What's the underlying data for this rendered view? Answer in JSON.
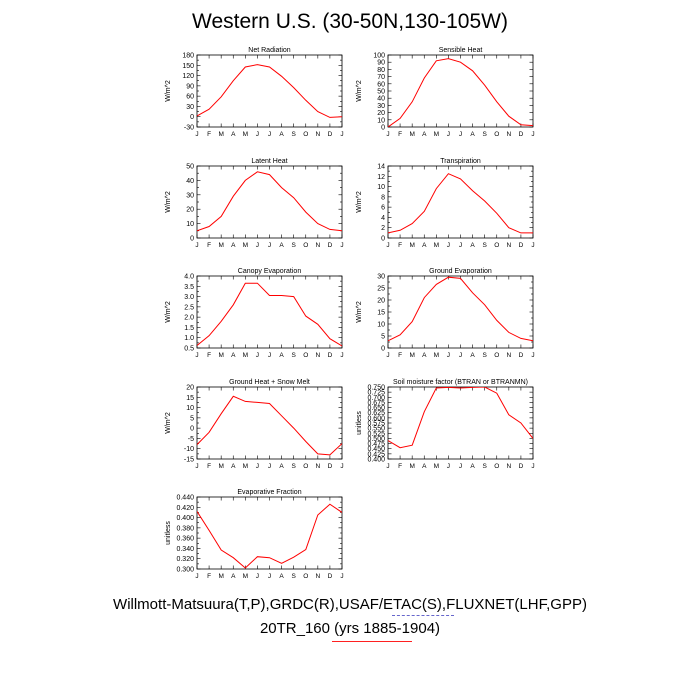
{
  "page_title": "Western U.S. (30-50N,130-105W)",
  "footer": {
    "line1": "Willmott-Matsuura(T,P),GRDC(R),USAF/ETAC(S),FLUXNET(LHF,GPP)",
    "line2": "20TR_160 (yrs 1885-1904)"
  },
  "colors": {
    "series": "#ff0000",
    "axis": "#000000",
    "legend_dashed": "#6666cc"
  },
  "chart_data": [
    {
      "type": "line",
      "title": "Net Radiation",
      "ylabel": "W/m^2",
      "ylim": [
        -30,
        180
      ],
      "yticks": [
        -30,
        -15,
        0,
        15,
        30,
        45,
        60,
        75,
        90,
        105,
        120,
        135,
        150,
        165,
        180
      ],
      "ylabels": [
        "-30",
        "",
        "0",
        "",
        "30",
        "",
        "60",
        "",
        "90",
        "",
        "120",
        "",
        "150",
        "",
        "180"
      ],
      "categories": [
        "J",
        "F",
        "M",
        "A",
        "M",
        "J",
        "J",
        "A",
        "S",
        "O",
        "N",
        "D",
        "J"
      ],
      "values": [
        2,
        22,
        58,
        105,
        145,
        152,
        145,
        118,
        85,
        48,
        15,
        -2,
        0
      ]
    },
    {
      "type": "line",
      "title": "Sensible Heat",
      "ylabel": "W/m^2",
      "ylim": [
        0,
        100
      ],
      "yticks": [
        0,
        10,
        20,
        30,
        40,
        50,
        60,
        70,
        80,
        90,
        100
      ],
      "ylabels": [
        "0",
        "10",
        "20",
        "30",
        "40",
        "50",
        "60",
        "70",
        "80",
        "90",
        "100"
      ],
      "categories": [
        "J",
        "F",
        "M",
        "A",
        "M",
        "J",
        "J",
        "A",
        "S",
        "O",
        "N",
        "D",
        "J"
      ],
      "values": [
        0,
        12,
        35,
        68,
        92,
        95,
        90,
        78,
        58,
        35,
        15,
        3,
        2
      ]
    },
    {
      "type": "line",
      "title": "Latent Heat",
      "ylabel": "W/m^2",
      "ylim": [
        0,
        50
      ],
      "yticks": [
        0,
        5,
        10,
        15,
        20,
        25,
        30,
        35,
        40,
        45,
        50
      ],
      "ylabels": [
        "0",
        "",
        "10",
        "",
        "20",
        "",
        "30",
        "",
        "40",
        "",
        "50"
      ],
      "categories": [
        "J",
        "F",
        "M",
        "A",
        "M",
        "J",
        "J",
        "A",
        "S",
        "O",
        "N",
        "D",
        "J"
      ],
      "values": [
        5,
        8,
        15,
        29,
        40,
        46,
        44,
        35,
        28,
        18,
        10,
        6,
        5
      ]
    },
    {
      "type": "line",
      "title": "Transpiration",
      "ylabel": "W/m^2",
      "ylim": [
        0,
        14
      ],
      "yticks": [
        0,
        1,
        2,
        3,
        4,
        5,
        6,
        7,
        8,
        9,
        10,
        11,
        12,
        13,
        14
      ],
      "ylabels": [
        "0",
        "",
        "2",
        "",
        "4",
        "",
        "6",
        "",
        "8",
        "",
        "10",
        "",
        "12",
        "",
        "14"
      ],
      "categories": [
        "J",
        "F",
        "M",
        "A",
        "M",
        "J",
        "J",
        "A",
        "S",
        "O",
        "N",
        "D",
        "J"
      ],
      "values": [
        1,
        1.5,
        2.8,
        5.2,
        9.6,
        12.5,
        11.5,
        9.2,
        7.2,
        4.8,
        2,
        1,
        1
      ]
    },
    {
      "type": "line",
      "title": "Canopy Evaporation",
      "ylabel": "W/m^2",
      "ylim": [
        0.5,
        4.0
      ],
      "yticks": [
        0.5,
        0.75,
        1.0,
        1.25,
        1.5,
        1.75,
        2.0,
        2.25,
        2.5,
        2.75,
        3.0,
        3.25,
        3.5,
        3.75,
        4.0
      ],
      "ylabels": [
        "0.5",
        "",
        "1.0",
        "",
        "1.5",
        "",
        "2.0",
        "",
        "2.5",
        "",
        "3.0",
        "",
        "3.5",
        "",
        "4.0"
      ],
      "categories": [
        "J",
        "F",
        "M",
        "A",
        "M",
        "J",
        "J",
        "A",
        "S",
        "O",
        "N",
        "D",
        "J"
      ],
      "values": [
        0.62,
        1.1,
        1.8,
        2.6,
        3.65,
        3.65,
        3.05,
        3.05,
        3.0,
        2.05,
        1.65,
        0.95,
        0.6
      ]
    },
    {
      "type": "line",
      "title": "Ground Evaporation",
      "ylabel": "W/m^2",
      "ylim": [
        0,
        30
      ],
      "yticks": [
        0,
        2.5,
        5,
        7.5,
        10,
        12.5,
        15,
        17.5,
        20,
        22.5,
        25,
        27.5,
        30
      ],
      "ylabels": [
        "0",
        "",
        "5",
        "",
        "10",
        "",
        "15",
        "",
        "20",
        "",
        "25",
        "",
        "30"
      ],
      "categories": [
        "J",
        "F",
        "M",
        "A",
        "M",
        "J",
        "J",
        "A",
        "S",
        "O",
        "N",
        "D",
        "J"
      ],
      "values": [
        3,
        5.5,
        11,
        21,
        26.5,
        29.5,
        29,
        23,
        18,
        11.5,
        6.5,
        4,
        3
      ]
    },
    {
      "type": "line",
      "title": "Ground Heat + Snow Melt",
      "ylabel": "W/m^2",
      "ylim": [
        -15,
        20
      ],
      "yticks": [
        -15,
        -12.5,
        -10,
        -7.5,
        -5,
        -2.5,
        0,
        2.5,
        5,
        7.5,
        10,
        12.5,
        15,
        17.5,
        20
      ],
      "ylabels": [
        "-15",
        "",
        "-10",
        "",
        "-5",
        "",
        "0",
        "",
        "5",
        "",
        "10",
        "",
        "15",
        "",
        "20"
      ],
      "categories": [
        "J",
        "F",
        "M",
        "A",
        "M",
        "J",
        "J",
        "A",
        "S",
        "O",
        "N",
        "D",
        "J"
      ],
      "values": [
        -8,
        -2,
        7,
        15.5,
        13,
        12.5,
        12,
        6,
        0,
        -6.5,
        -12.5,
        -13,
        -7.5
      ]
    },
    {
      "type": "line",
      "title": "Soil moisture factor (BTRAN or BTRANMN)",
      "ylabel": "unitless",
      "ylim": [
        0.4,
        0.75
      ],
      "yticks": [
        0.4,
        0.425,
        0.45,
        0.475,
        0.5,
        0.525,
        0.55,
        0.575,
        0.6,
        0.625,
        0.65,
        0.675,
        0.7,
        0.725,
        0.75
      ],
      "ylabels": [
        "0.400",
        "0.425",
        "0.450",
        "0.475",
        "0.500",
        "0.525",
        "0.550",
        "0.575",
        "0.600",
        "0.625",
        "0.650",
        "0.675",
        "0.700",
        "0.725",
        "0.750"
      ],
      "categories": [
        "J",
        "F",
        "M",
        "A",
        "M",
        "J",
        "J",
        "A",
        "S",
        "O",
        "N",
        "D",
        "J"
      ],
      "values": [
        0.49,
        0.455,
        0.467,
        0.63,
        0.745,
        0.748,
        0.745,
        0.748,
        0.75,
        0.72,
        0.615,
        0.575,
        0.5
      ]
    },
    {
      "type": "line",
      "title": "Evaporative Fraction",
      "ylabel": "unitless",
      "ylim": [
        0.3,
        0.44
      ],
      "yticks": [
        0.3,
        0.31,
        0.32,
        0.33,
        0.34,
        0.35,
        0.36,
        0.37,
        0.38,
        0.39,
        0.4,
        0.41,
        0.42,
        0.43,
        0.44
      ],
      "ylabels": [
        "0.300",
        "",
        "0.320",
        "",
        "0.340",
        "",
        "0.360",
        "",
        "0.380",
        "",
        "0.400",
        "",
        "0.420",
        "",
        "0.440"
      ],
      "categories": [
        "J",
        "F",
        "M",
        "A",
        "M",
        "J",
        "J",
        "A",
        "S",
        "O",
        "N",
        "D",
        "J"
      ],
      "values": [
        0.412,
        0.375,
        0.337,
        0.322,
        0.302,
        0.324,
        0.322,
        0.311,
        0.323,
        0.338,
        0.405,
        0.426,
        0.41
      ]
    }
  ]
}
